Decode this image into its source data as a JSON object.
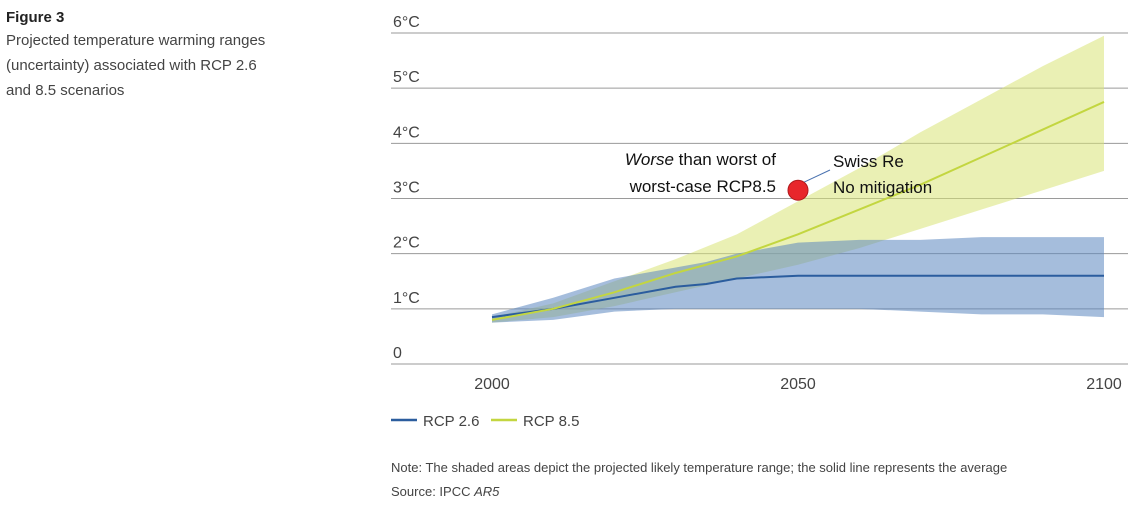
{
  "caption": {
    "figure_label": "Figure 3",
    "description_lines": [
      "Projected temperature warming ranges",
      "(uncertainty) associated with RCP 2.6",
      "and 8.5 scenarios"
    ]
  },
  "note": {
    "text": "Note: The shaded areas depict the projected likely temperature range; the solid line represents the average",
    "source_prefix": "Source: IPCC ",
    "source_italic": "AR5"
  },
  "colors": {
    "rcp26_line": "#2b5d9e",
    "rcp26_band": "#5b87c0",
    "rcp85_line": "#c3d640",
    "rcp85_band": "#d9e476",
    "marker": "#e8262b",
    "grid": "#9a9a9a"
  },
  "chart_data": {
    "type": "area",
    "x_ticks": [
      2000,
      2050,
      2100
    ],
    "y_ticks": [
      {
        "value": 0,
        "label": "0"
      },
      {
        "value": 1,
        "label": "1°C"
      },
      {
        "value": 2,
        "label": "2°C"
      },
      {
        "value": 3,
        "label": "3°C"
      },
      {
        "value": 4,
        "label": "4°C"
      },
      {
        "value": 5,
        "label": "5°C"
      },
      {
        "value": 6,
        "label": "6°C"
      }
    ],
    "xlim": [
      1995,
      2104
    ],
    "ylim": [
      0,
      6
    ],
    "legend_position": "bottom-left",
    "grid": true,
    "series": [
      {
        "name": "RCP 2.6",
        "x": [
          2000,
          2010,
          2020,
          2030,
          2035,
          2040,
          2050,
          2060,
          2070,
          2080,
          2090,
          2100
        ],
        "mean": [
          0.85,
          1.0,
          1.2,
          1.4,
          1.45,
          1.55,
          1.6,
          1.6,
          1.6,
          1.6,
          1.6,
          1.6
        ],
        "upper": [
          0.9,
          1.2,
          1.55,
          1.75,
          1.85,
          2.0,
          2.2,
          2.25,
          2.25,
          2.3,
          2.3,
          2.3
        ],
        "lower": [
          0.75,
          0.8,
          0.95,
          1.0,
          1.0,
          1.0,
          1.0,
          1.0,
          0.95,
          0.9,
          0.9,
          0.85
        ]
      },
      {
        "name": "RCP 8.5",
        "x": [
          2000,
          2010,
          2020,
          2030,
          2040,
          2050,
          2060,
          2070,
          2080,
          2090,
          2100
        ],
        "mean": [
          0.8,
          1.0,
          1.3,
          1.65,
          1.95,
          2.35,
          2.8,
          3.25,
          3.75,
          4.25,
          4.75
        ],
        "upper": [
          0.85,
          1.1,
          1.5,
          1.9,
          2.35,
          2.95,
          3.55,
          4.2,
          4.8,
          5.4,
          5.95
        ],
        "lower": [
          0.75,
          0.85,
          1.05,
          1.3,
          1.55,
          1.8,
          2.1,
          2.45,
          2.8,
          3.15,
          3.5
        ]
      }
    ],
    "annotations": [
      {
        "lines": [
          {
            "italic": "Worse",
            "rest": " than worst of"
          },
          {
            "italic": "",
            "rest": "worst-case RCP8.5"
          }
        ]
      },
      {
        "lines": [
          "Swiss Re",
          "No mitigation"
        ]
      }
    ],
    "marker_point": {
      "x": 2050,
      "y": 3.15
    }
  }
}
